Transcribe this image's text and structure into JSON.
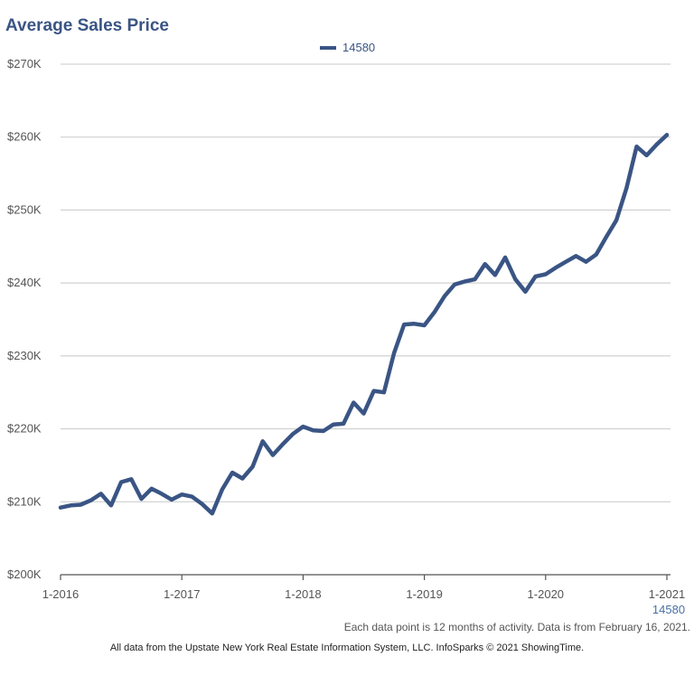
{
  "chart_data": {
    "type": "line",
    "title": "Average Sales Price",
    "xlabel": "",
    "ylabel": "",
    "ylim": [
      200000,
      270000
    ],
    "yticks": [
      {
        "value": 200000,
        "label": "$200K"
      },
      {
        "value": 210000,
        "label": "$210K"
      },
      {
        "value": 220000,
        "label": "$220K"
      },
      {
        "value": 230000,
        "label": "$230K"
      },
      {
        "value": 240000,
        "label": "$240K"
      },
      {
        "value": 250000,
        "label": "$250K"
      },
      {
        "value": 260000,
        "label": "$260K"
      },
      {
        "value": 270000,
        "label": "$270K"
      }
    ],
    "xticks": [
      {
        "index": 0,
        "label": "1-2016"
      },
      {
        "index": 12,
        "label": "1-2017"
      },
      {
        "index": 24,
        "label": "1-2018"
      },
      {
        "index": 36,
        "label": "1-2019"
      },
      {
        "index": 48,
        "label": "1-2020"
      },
      {
        "index": 60,
        "label": "1-2021"
      }
    ],
    "x_axis_sublabel": "14580",
    "grid": true,
    "legend_position": "top-center",
    "series": [
      {
        "name": "14580",
        "color": "#3a5584",
        "values": [
          209200,
          209500,
          209600,
          210200,
          211100,
          209500,
          212700,
          213100,
          210400,
          211800,
          211100,
          210300,
          211000,
          210700,
          209700,
          208400,
          211700,
          214000,
          213200,
          214800,
          218300,
          216400,
          217900,
          219300,
          220300,
          219800,
          219700,
          220600,
          220700,
          223600,
          222100,
          225200,
          225000,
          230400,
          234300,
          234400,
          234200,
          236000,
          238200,
          239800,
          240200,
          240500,
          242600,
          241100,
          243500,
          240500,
          238800,
          240900,
          241200,
          242100,
          242900,
          243700,
          242900,
          243900,
          246300,
          248600,
          253000,
          258700,
          257500,
          259000,
          260300
        ]
      }
    ]
  },
  "footnote": "Each data point is 12 months of activity. Data is from February 16, 2021.",
  "credits": "All data from the Upstate New York Real Estate Information System, LLC. InfoSparks © 2021 ShowingTime."
}
